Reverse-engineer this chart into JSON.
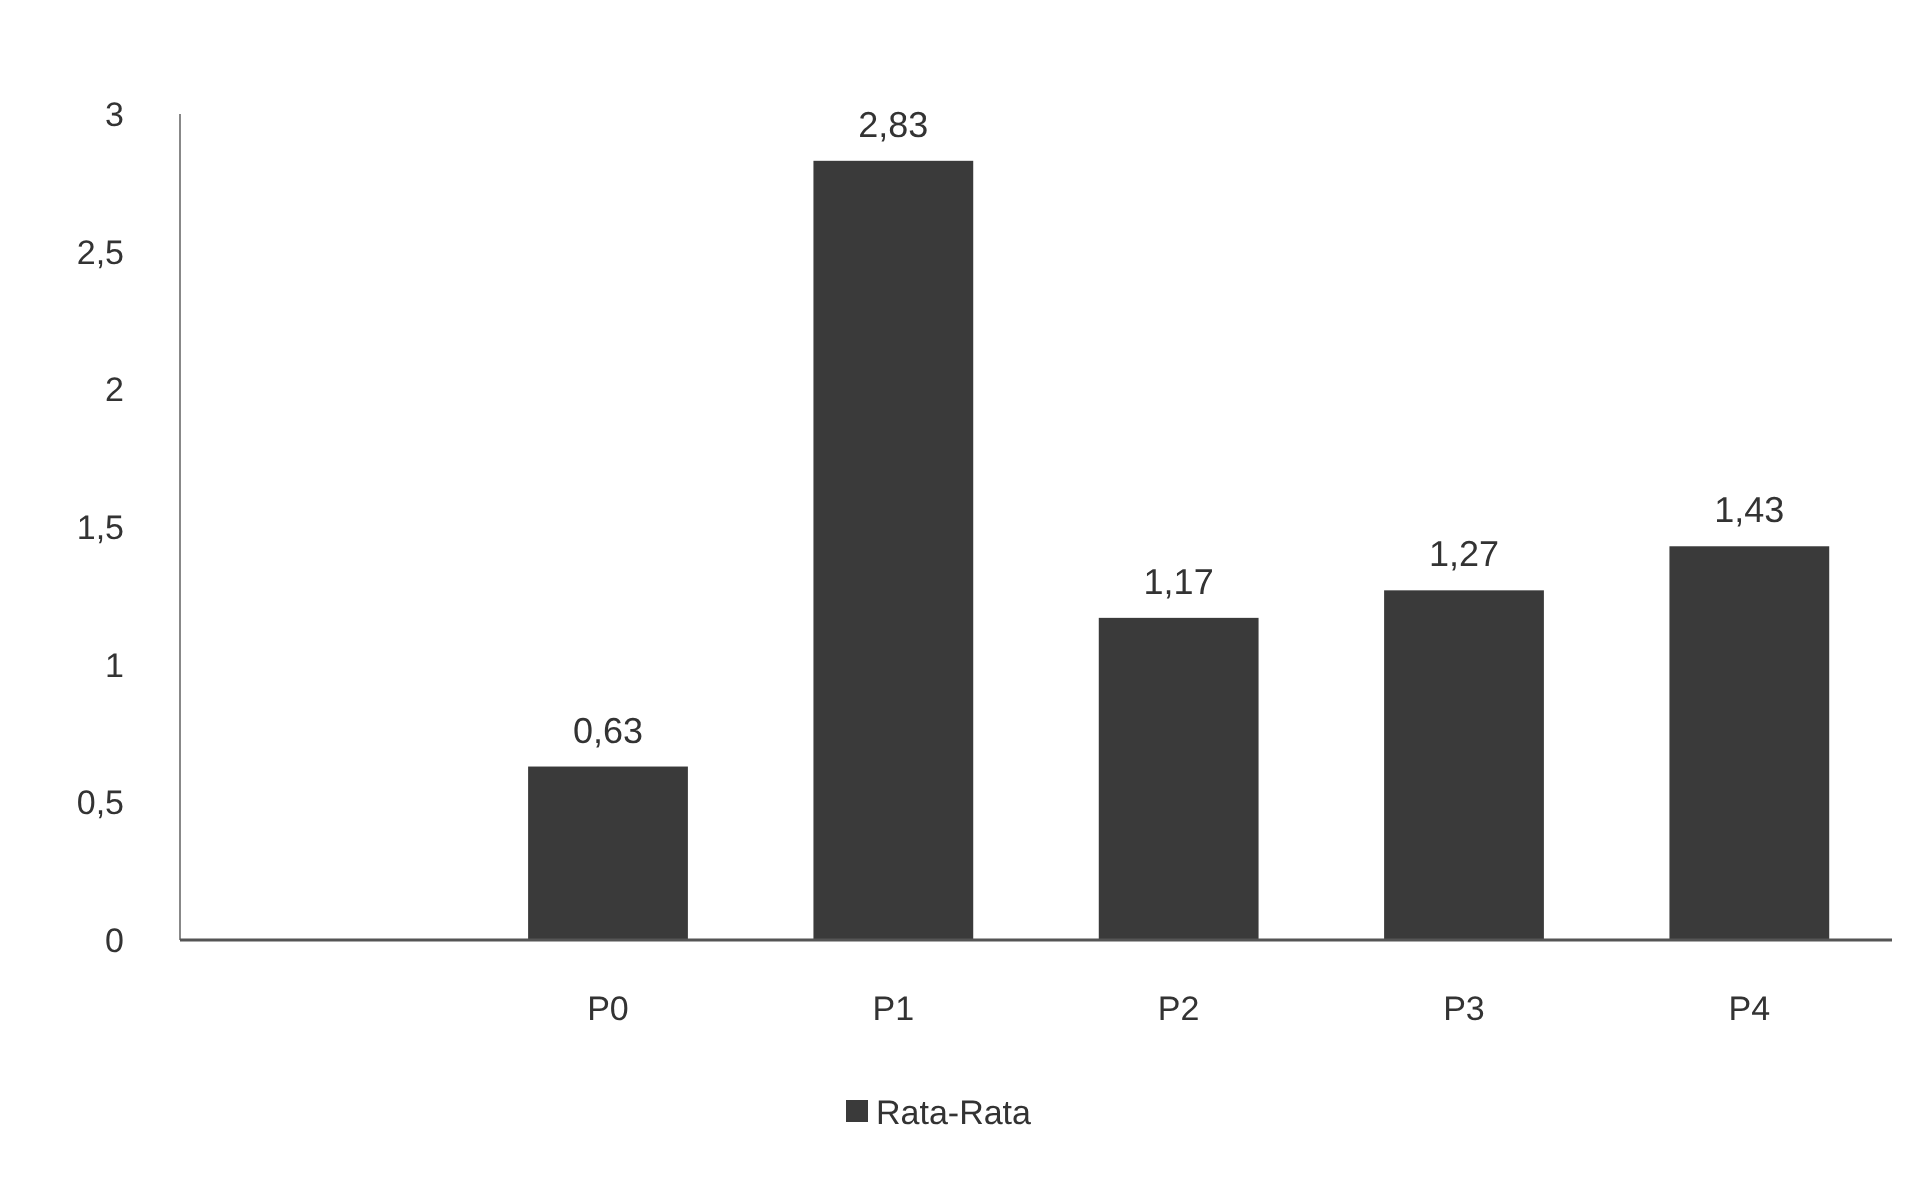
{
  "chart_data": {
    "type": "bar",
    "categories": [
      null,
      "P0",
      "P1",
      "P2",
      "P3",
      "P4"
    ],
    "series": [
      {
        "name": "Rata-Rata",
        "color": "#3a3a3a",
        "values": [
          null,
          0.63,
          2.83,
          1.17,
          1.27,
          1.43
        ],
        "value_labels": [
          null,
          "0,63",
          "2,83",
          "1,17",
          "1,27",
          "1,43"
        ]
      }
    ],
    "ylim": [
      0,
      3
    ],
    "yticks": [
      0,
      {
        "value": 0.5,
        "label": "0,5"
      },
      1,
      {
        "value": 1.5,
        "label": "1,5"
      },
      2,
      {
        "value": 2.5,
        "label": "2,5"
      },
      3
    ],
    "grid": false,
    "legend": "bottom"
  }
}
